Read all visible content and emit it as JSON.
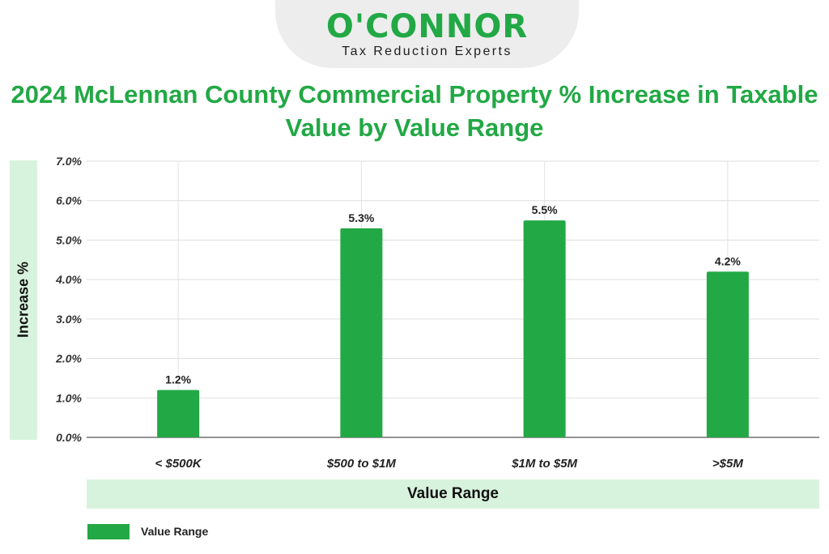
{
  "logo": {
    "brand": "O'CONNOR",
    "tagline": "Tax Reduction Experts"
  },
  "chart_data": {
    "type": "bar",
    "title": "2024 McLennan County Commercial Property % Increase in Taxable Value by Value Range",
    "xlabel": "Value Range",
    "ylabel": "Increase %",
    "categories": [
      "< $500K",
      "$500 to $1M",
      "$1M to $5M",
      ">$5M"
    ],
    "series": [
      {
        "name": "Value Range",
        "values": [
          1.2,
          5.3,
          5.5,
          4.2
        ]
      }
    ],
    "data_labels": [
      "1.2%",
      "5.3%",
      "5.5%",
      "4.2%"
    ],
    "ylim": [
      0,
      7
    ],
    "yticks": [
      0,
      1,
      2,
      3,
      4,
      5,
      6,
      7
    ],
    "ytick_labels": [
      "0.0%",
      "1.0%",
      "2.0%",
      "3.0%",
      "4.0%",
      "5.0%",
      "6.0%",
      "7.0%"
    ],
    "grid": true,
    "legend_position": "bottom-left",
    "bar_color": "#22a845"
  }
}
